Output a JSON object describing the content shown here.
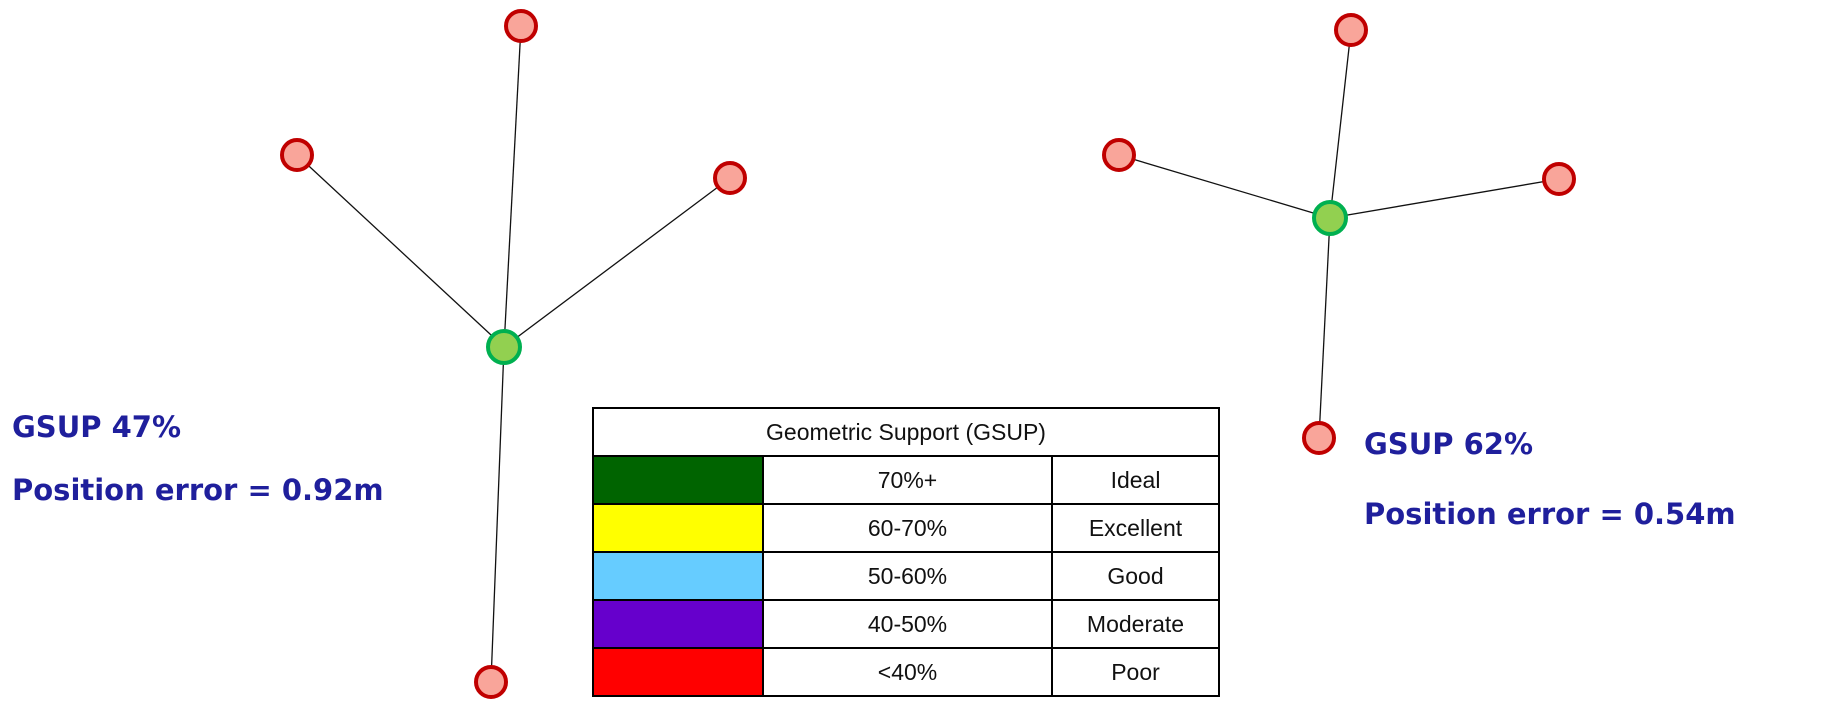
{
  "left": {
    "gsup": "GSUP 47%",
    "error": "Position error = 0.92m"
  },
  "right": {
    "gsup": "GSUP 62%",
    "error": "Position error = 0.54m"
  },
  "table": {
    "title": "Geometric Support (GSUP)",
    "rows": [
      {
        "color": "#006400",
        "range": "70%+",
        "rating": "Ideal"
      },
      {
        "color": "#ffff00",
        "range": "60-70%",
        "rating": "Excellent"
      },
      {
        "color": "#66ccff",
        "range": "50-60%",
        "rating": "Good"
      },
      {
        "color": "#6600cc",
        "range": "40-50%",
        "rating": "Moderate"
      },
      {
        "color": "#ff0000",
        "range": "<40%",
        "rating": "Poor"
      }
    ]
  }
}
